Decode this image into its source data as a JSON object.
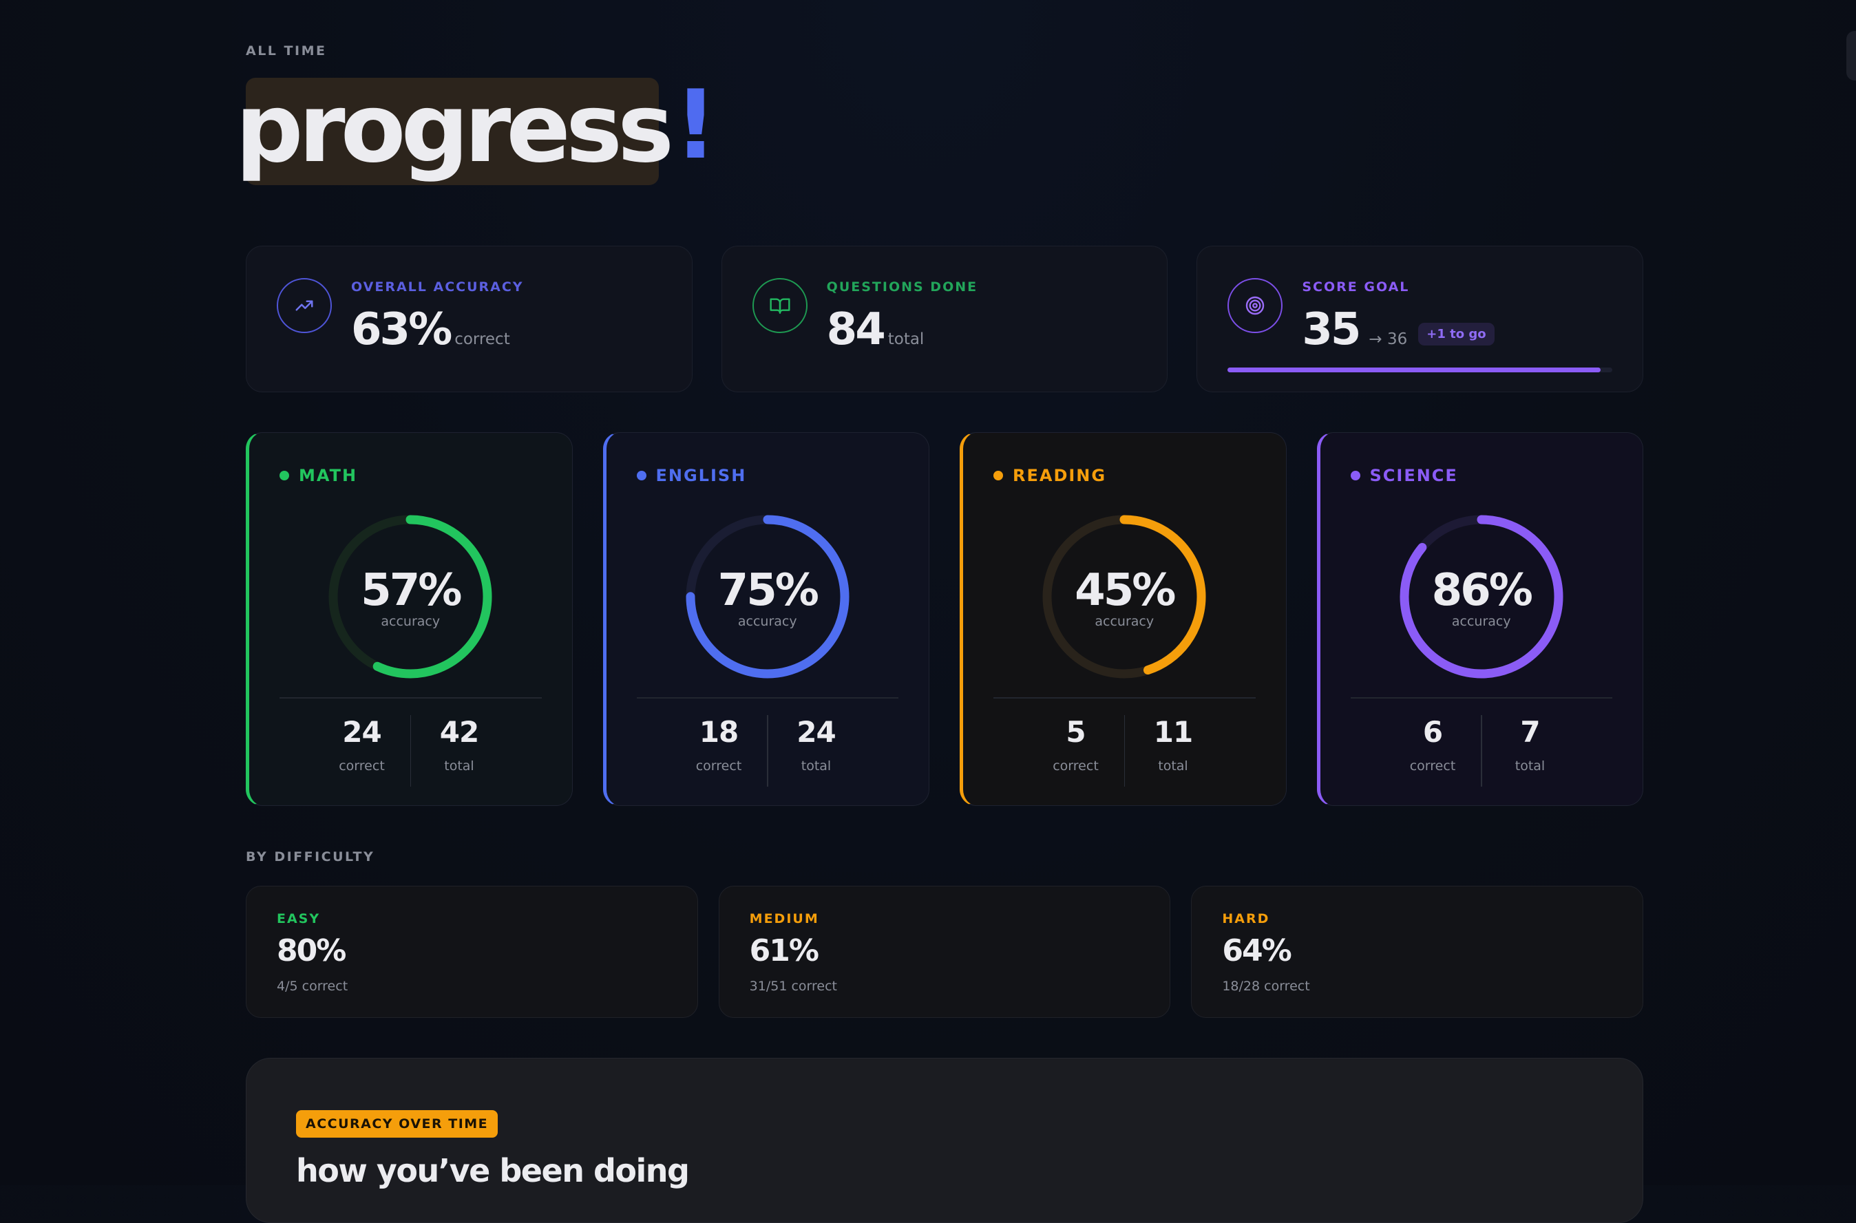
{
  "header": {
    "eyebrow": "ALL TIME",
    "title": "progress",
    "title_accent": "!"
  },
  "stats": {
    "accuracy": {
      "label": "OVERALL ACCURACY",
      "value": "63%",
      "unit": "correct",
      "icon": "trending-up-icon",
      "color": "#5b5fe0"
    },
    "questions": {
      "label": "QUESTIONS DONE",
      "value": "84",
      "unit": "total",
      "icon": "open-book-icon",
      "color": "#22a55a"
    },
    "goal": {
      "label": "SCORE GOAL",
      "value": "35",
      "target": "→ 36",
      "badge": "+1 to go",
      "icon": "target-icon",
      "color": "#8b5cf6",
      "progress": 0.97
    }
  },
  "subjects": [
    {
      "name": "MATH",
      "percent": "57%",
      "fraction": 0.57,
      "sub": "accuracy",
      "correct": "24",
      "total": "42",
      "correct_label": "correct",
      "total_label": "total",
      "color": "#22c55e",
      "track": "#16261d",
      "bg": "#0e141a"
    },
    {
      "name": "ENGLISH",
      "percent": "75%",
      "fraction": 0.75,
      "sub": "accuracy",
      "correct": "18",
      "total": "24",
      "correct_label": "correct",
      "total_label": "total",
      "color": "#4f6ef0",
      "track": "#1a1d33",
      "bg": "#0f1220"
    },
    {
      "name": "READING",
      "percent": "45%",
      "fraction": 0.45,
      "sub": "accuracy",
      "correct": "5",
      "total": "11",
      "correct_label": "correct",
      "total_label": "total",
      "color": "#f59e0b",
      "track": "#29231b",
      "bg": "#121214"
    },
    {
      "name": "SCIENCE",
      "percent": "86%",
      "fraction": 0.86,
      "sub": "accuracy",
      "correct": "6",
      "total": "7",
      "correct_label": "correct",
      "total_label": "total",
      "color": "#8b5cf6",
      "track": "#1d1a35",
      "bg": "#100f1f"
    }
  ],
  "difficulty": {
    "label": "BY DIFFICULTY",
    "items": [
      {
        "name": "EASY",
        "percent": "80%",
        "sub": "4/5 correct",
        "color": "#22c55e"
      },
      {
        "name": "MEDIUM",
        "percent": "61%",
        "sub": "31/51 correct",
        "color": "#f59e0b"
      },
      {
        "name": "HARD",
        "percent": "64%",
        "sub": "18/28 correct",
        "color": "#f59e0b"
      }
    ]
  },
  "chart_panel": {
    "tag": "ACCURACY OVER TIME",
    "heading": "how you’ve been doing"
  }
}
